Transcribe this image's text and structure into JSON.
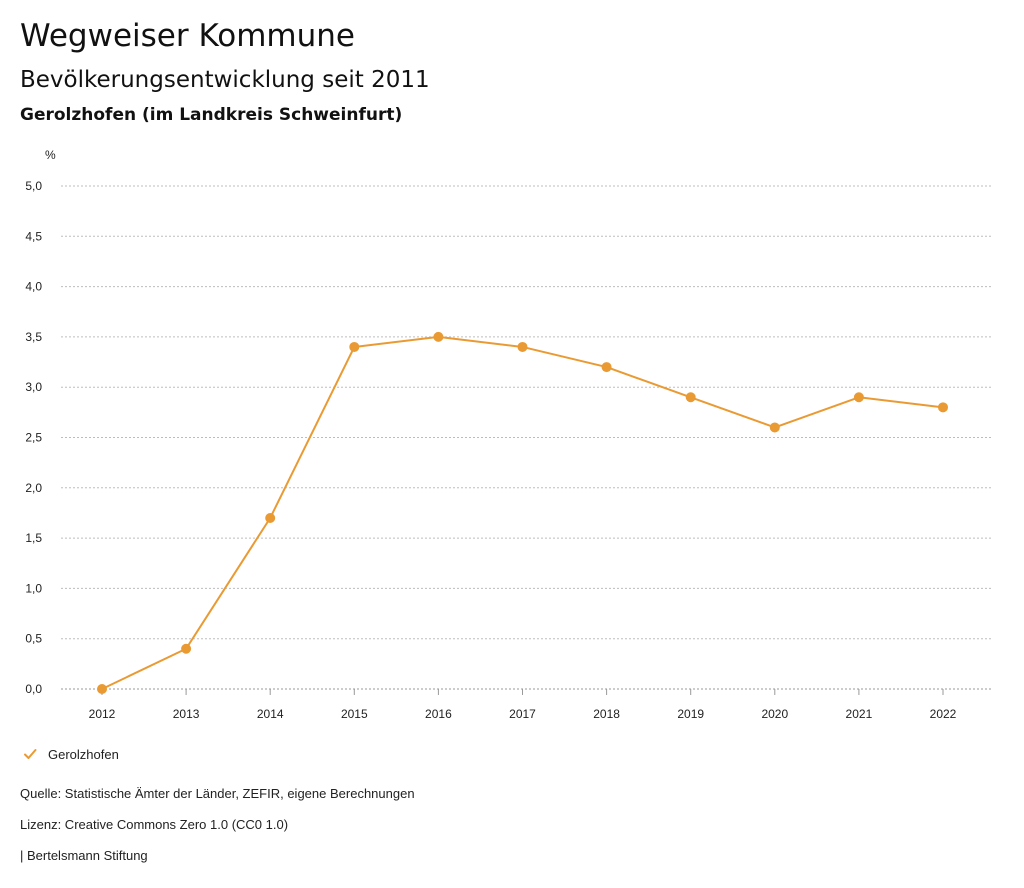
{
  "header": {
    "title": "Wegweiser Kommune",
    "subtitle": "Bevölkerungsentwicklung seit 2011",
    "region": "Gerolzhofen (im Landkreis Schweinfurt)"
  },
  "chart_data": {
    "type": "line",
    "title": "Bevölkerungsentwicklung seit 2011",
    "xlabel": "",
    "ylabel": "%",
    "x": [
      "2012",
      "2013",
      "2014",
      "2015",
      "2016",
      "2017",
      "2018",
      "2019",
      "2020",
      "2021",
      "2022"
    ],
    "series": [
      {
        "name": "Gerolzhofen",
        "color": "#EA9A32",
        "values": [
          0.0,
          0.4,
          1.7,
          3.4,
          3.5,
          3.4,
          3.2,
          2.9,
          2.6,
          2.9,
          2.8
        ]
      }
    ],
    "ylim": [
      0,
      5
    ],
    "yticks": [
      "0,0",
      "0,5",
      "1,0",
      "1,5",
      "2,0",
      "2,5",
      "3,0",
      "3,5",
      "4,0",
      "4,5",
      "5,0"
    ],
    "grid": true,
    "legend_position": "bottom-left"
  },
  "legend": {
    "label": "Gerolzhofen",
    "icon": "check-icon"
  },
  "footer": {
    "source": "Quelle: Statistische Ämter der Länder, ZEFIR, eigene Berechnungen",
    "license": "Lizenz: Creative Commons Zero 1.0 (CC0 1.0)",
    "publisher": "| Bertelsmann Stiftung"
  }
}
